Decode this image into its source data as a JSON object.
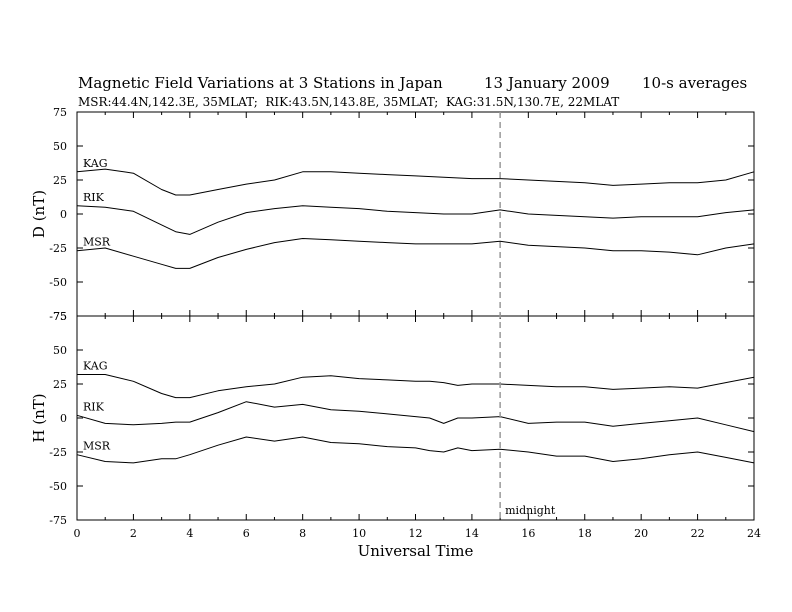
{
  "header": {
    "title": "Magnetic Field Variations at 3 Stations in Japan",
    "date": "13 January 2009",
    "averaging": "10-s averages",
    "stations_line": "MSR:44.4N,142.3E, 35MLAT;  RIK:43.5N,143.8E, 35MLAT;  KAG:31.5N,130.7E, 22MLAT"
  },
  "annotations": {
    "midnight_label": "midnight"
  },
  "chart_data": [
    {
      "type": "line",
      "panel": "D",
      "ylabel": "D (nT)",
      "xlabel": "",
      "ylim": [
        -75,
        75
      ],
      "xlim": [
        0,
        24
      ],
      "yticks": [
        75,
        50,
        25,
        0,
        -25,
        -50,
        -75
      ],
      "xticks": [],
      "grid": false,
      "midnight_ut": 15,
      "x": [
        0,
        1,
        2,
        3,
        3.5,
        4,
        5,
        6,
        7,
        8,
        9,
        10,
        11,
        12,
        13,
        14,
        15,
        16,
        17,
        18,
        19,
        20,
        21,
        22,
        23,
        24
      ],
      "series": [
        {
          "name": "KAG",
          "values": [
            31,
            33,
            30,
            18,
            14,
            14,
            18,
            22,
            25,
            31,
            31,
            30,
            29,
            28,
            27,
            26,
            26,
            25,
            24,
            23,
            21,
            22,
            23,
            23,
            25,
            31
          ]
        },
        {
          "name": "RIK",
          "values": [
            6,
            5,
            2,
            -8,
            -13,
            -15,
            -6,
            1,
            4,
            6,
            5,
            4,
            2,
            1,
            0,
            0,
            3,
            0,
            -1,
            -2,
            -3,
            -2,
            -2,
            -2,
            1,
            3
          ]
        },
        {
          "name": "MSR",
          "values": [
            -27,
            -25,
            -31,
            -37,
            -40,
            -40,
            -32,
            -26,
            -21,
            -18,
            -19,
            -20,
            -21,
            -22,
            -22,
            -22,
            -20,
            -23,
            -24,
            -25,
            -27,
            -27,
            -28,
            -30,
            -25,
            -22
          ]
        }
      ]
    },
    {
      "type": "line",
      "panel": "H",
      "ylabel": "H (nT)",
      "xlabel": "Universal Time",
      "ylim": [
        -75,
        75
      ],
      "xlim": [
        0,
        24
      ],
      "yticks": [
        75,
        50,
        25,
        0,
        -25,
        -50,
        -75
      ],
      "xticks": [
        0,
        2,
        4,
        6,
        8,
        10,
        12,
        14,
        16,
        18,
        20,
        22,
        24
      ],
      "grid": false,
      "midnight_ut": 15,
      "x": [
        0,
        1,
        2,
        3,
        3.5,
        4,
        5,
        6,
        7,
        8,
        9,
        10,
        11,
        12,
        12.5,
        13,
        13.5,
        14,
        15,
        16,
        17,
        18,
        19,
        20,
        21,
        22,
        23,
        24
      ],
      "series": [
        {
          "name": "KAG",
          "values": [
            32,
            32,
            27,
            18,
            15,
            15,
            20,
            23,
            25,
            30,
            31,
            29,
            28,
            27,
            27,
            26,
            24,
            25,
            25,
            24,
            23,
            23,
            21,
            22,
            23,
            22,
            26,
            30
          ]
        },
        {
          "name": "RIK",
          "values": [
            2,
            -4,
            -5,
            -4,
            -3,
            -3,
            4,
            12,
            8,
            10,
            6,
            5,
            3,
            1,
            0,
            -4,
            0,
            0,
            1,
            -4,
            -3,
            -3,
            -6,
            -4,
            -2,
            0,
            -5,
            -10
          ]
        },
        {
          "name": "MSR",
          "values": [
            -27,
            -32,
            -33,
            -30,
            -30,
            -27,
            -20,
            -14,
            -17,
            -14,
            -18,
            -19,
            -21,
            -22,
            -24,
            -25,
            -22,
            -24,
            -23,
            -25,
            -28,
            -28,
            -32,
            -30,
            -27,
            -25,
            -29,
            -33
          ]
        }
      ]
    }
  ]
}
